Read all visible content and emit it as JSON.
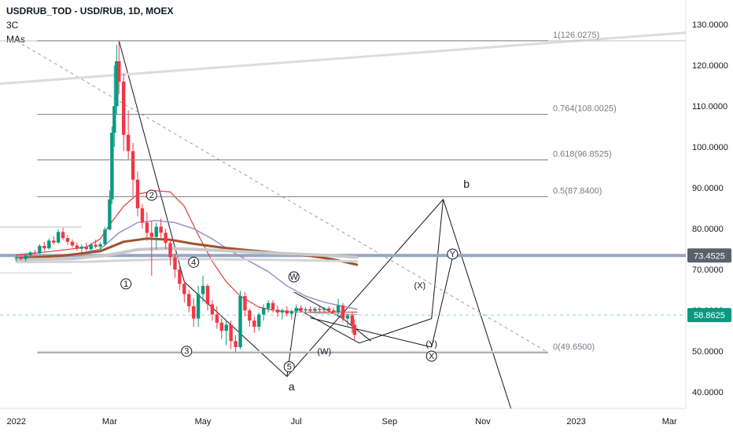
{
  "header": {
    "title": "USDRUB_TOD - USD/RUB, 1D, MOEX",
    "line2": "3C",
    "line3": "MAs"
  },
  "chart_data": {
    "type": "candlestick",
    "ylim": [
      36,
      136
    ],
    "y_ticks": [
      "40.0000",
      "50.0000",
      "60.0000",
      "70.0000",
      "80.0000",
      "90.0000",
      "100.0000",
      "110.0000",
      "120.0000",
      "130.0000"
    ],
    "y_tick_values": [
      40,
      50,
      60,
      70,
      80,
      90,
      100,
      110,
      120,
      130
    ],
    "x_ticks": [
      "2022",
      "Mar",
      "May",
      "Jul",
      "Sep",
      "Nov",
      "2023",
      "Mar"
    ],
    "x_tick_values": [
      0,
      2,
      4,
      6,
      8,
      10,
      12,
      14
    ],
    "xlim": [
      -0.35,
      14.35
    ],
    "price_tags": [
      {
        "label": "73.4525",
        "value": 73.45,
        "color": "#5d606b"
      },
      {
        "label": "58.8625",
        "value": 58.86,
        "color": "#089981"
      }
    ],
    "fib_levels": [
      {
        "label": "1(126.0275)",
        "value": 126.03
      },
      {
        "label": "0.764(108.0025)",
        "value": 108.0
      },
      {
        "label": "0.618(96.8525)",
        "value": 96.85
      },
      {
        "label": "0.5(87.8400)",
        "value": 87.84
      },
      {
        "label": "0(49.6500)",
        "value": 49.65
      }
    ],
    "fib_x_start": 0.45,
    "fib_x_end": 11.4,
    "wave_labels": [
      {
        "label": "1",
        "x": 2.35,
        "y": 66.5,
        "circled": true
      },
      {
        "label": "2",
        "x": 2.9,
        "y": 88.2,
        "circled": true
      },
      {
        "label": "3",
        "x": 3.65,
        "y": 50.0,
        "circled": true
      },
      {
        "label": "4",
        "x": 3.8,
        "y": 71.8,
        "circled": true
      },
      {
        "label": "5",
        "x": 5.85,
        "y": 46.2,
        "circled": true
      },
      {
        "label": "W",
        "x": 5.95,
        "y": 68.2,
        "circled": true
      },
      {
        "label": "(W)",
        "x": 6.6,
        "y": 50.0,
        "circled": false
      },
      {
        "label": "(X)",
        "x": 8.65,
        "y": 66.2,
        "circled": false
      },
      {
        "label": "Y",
        "x": 9.35,
        "y": 73.8,
        "circled": true
      },
      {
        "label": "(Y)",
        "x": 8.9,
        "y": 51.9,
        "circled": false
      },
      {
        "label": "X",
        "x": 8.9,
        "y": 48.8,
        "circled": true
      },
      {
        "label": "a",
        "x": 5.9,
        "y": 41.2,
        "circled": false,
        "big": true
      },
      {
        "label": "b",
        "x": 9.65,
        "y": 90.8,
        "circled": false,
        "big": true
      }
    ],
    "candles": [
      [
        0.0,
        72.8,
        73.4,
        72.0,
        73.0
      ],
      [
        0.1,
        73.0,
        73.6,
        72.2,
        72.6
      ],
      [
        0.2,
        72.6,
        73.9,
        72.0,
        73.5
      ],
      [
        0.3,
        73.5,
        74.5,
        73.0,
        74.2
      ],
      [
        0.4,
        74.2,
        74.8,
        73.6,
        74.0
      ],
      [
        0.5,
        74.0,
        76.2,
        73.8,
        75.8
      ],
      [
        0.6,
        75.8,
        76.8,
        74.6,
        75.2
      ],
      [
        0.7,
        75.2,
        77.6,
        74.9,
        77.1
      ],
      [
        0.8,
        77.1,
        78.2,
        76.1,
        76.6
      ],
      [
        0.9,
        76.6,
        79.9,
        76.3,
        79.2
      ],
      [
        1.0,
        79.2,
        80.2,
        77.2,
        77.7
      ],
      [
        1.1,
        77.7,
        78.4,
        76.0,
        76.8
      ],
      [
        1.2,
        76.8,
        77.4,
        75.4,
        75.9
      ],
      [
        1.3,
        75.9,
        76.6,
        74.6,
        75.1
      ],
      [
        1.4,
        75.1,
        76.2,
        74.2,
        75.6
      ],
      [
        1.5,
        75.6,
        76.6,
        74.6,
        75.0
      ],
      [
        1.6,
        75.0,
        76.5,
        74.6,
        76.1
      ],
      [
        1.7,
        76.1,
        77.3,
        75.2,
        75.6
      ],
      [
        1.8,
        75.6,
        76.7,
        74.9,
        76.2
      ],
      [
        1.9,
        76.2,
        80.4,
        75.8,
        79.8
      ],
      [
        2.0,
        79.8,
        89.4,
        79.6,
        87.2
      ],
      [
        2.05,
        87.2,
        105.0,
        86.0,
        103.5
      ],
      [
        2.1,
        103.5,
        120.0,
        100.0,
        110.0
      ],
      [
        2.15,
        110.0,
        125.0,
        108.0,
        121.0
      ],
      [
        2.2,
        121.0,
        126.0,
        113.0,
        116.0
      ],
      [
        2.3,
        116.0,
        118.0,
        99.0,
        103.0
      ],
      [
        2.4,
        103.0,
        109.0,
        97.0,
        99.0
      ],
      [
        2.5,
        99.0,
        101.0,
        88.0,
        92.0
      ],
      [
        2.6,
        92.0,
        94.0,
        83.0,
        85.0
      ],
      [
        2.7,
        85.0,
        86.0,
        80.0,
        81.5
      ],
      [
        2.8,
        81.5,
        84.0,
        77.0,
        79.0
      ],
      [
        2.9,
        79.0,
        82.0,
        68.5,
        78.0
      ],
      [
        3.0,
        78.0,
        81.5,
        75.0,
        80.5
      ],
      [
        3.1,
        80.5,
        82.5,
        77.5,
        79.0
      ],
      [
        3.2,
        79.0,
        80.0,
        75.0,
        76.5
      ],
      [
        3.3,
        76.5,
        77.5,
        71.0,
        73.0
      ],
      [
        3.4,
        73.0,
        74.0,
        68.0,
        70.0
      ],
      [
        3.5,
        70.0,
        71.5,
        65.0,
        66.5
      ],
      [
        3.6,
        66.5,
        67.5,
        62.0,
        64.0
      ],
      [
        3.7,
        64.0,
        65.0,
        59.5,
        61.0
      ],
      [
        3.8,
        61.0,
        63.0,
        56.0,
        58.0
      ],
      [
        3.9,
        58.0,
        66.0,
        56.0,
        64.0
      ],
      [
        4.0,
        64.0,
        68.5,
        62.0,
        66.0
      ],
      [
        4.1,
        66.0,
        66.5,
        60.0,
        61.5
      ],
      [
        4.2,
        61.5,
        62.5,
        57.5,
        59.0
      ],
      [
        4.3,
        59.0,
        61.0,
        55.5,
        57.0
      ],
      [
        4.4,
        57.0,
        58.0,
        53.0,
        55.0
      ],
      [
        4.5,
        55.0,
        57.5,
        51.5,
        56.5
      ],
      [
        4.6,
        56.5,
        57.5,
        50.5,
        52.5
      ],
      [
        4.7,
        52.5,
        54.0,
        49.8,
        51.0
      ],
      [
        4.8,
        51.0,
        64.8,
        50.5,
        63.5
      ],
      [
        4.9,
        63.5,
        64.5,
        58.5,
        60.0
      ],
      [
        5.0,
        60.0,
        60.5,
        56.0,
        57.5
      ],
      [
        5.1,
        57.5,
        58.5,
        54.5,
        56.0
      ],
      [
        5.2,
        56.0,
        59.5,
        55.0,
        59.0
      ],
      [
        5.3,
        59.0,
        61.5,
        57.5,
        60.5
      ],
      [
        5.4,
        60.5,
        62.5,
        59.5,
        61.8
      ],
      [
        5.5,
        61.8,
        62.5,
        59.5,
        60.2
      ],
      [
        5.6,
        60.2,
        61.2,
        58.5,
        59.5
      ],
      [
        5.7,
        59.5,
        60.5,
        57.8,
        60.0
      ],
      [
        5.8,
        60.0,
        61.0,
        58.5,
        59.2
      ],
      [
        5.9,
        59.2,
        60.2,
        57.8,
        59.8
      ],
      [
        6.0,
        59.8,
        61.5,
        59.2,
        60.6
      ],
      [
        6.1,
        60.6,
        61.2,
        59.5,
        60.0
      ],
      [
        6.2,
        60.0,
        60.8,
        59.3,
        60.3
      ],
      [
        6.3,
        60.3,
        61.0,
        59.4,
        59.9
      ],
      [
        6.4,
        59.9,
        60.8,
        59.4,
        60.4
      ],
      [
        6.5,
        60.4,
        61.0,
        59.6,
        60.1
      ],
      [
        6.6,
        60.1,
        60.8,
        59.5,
        60.5
      ],
      [
        6.7,
        60.5,
        61.0,
        59.8,
        60.0
      ],
      [
        6.8,
        60.0,
        60.6,
        59.2,
        59.6
      ],
      [
        6.9,
        59.6,
        62.8,
        58.8,
        61.2
      ],
      [
        7.0,
        61.2,
        61.8,
        57.2,
        58.0
      ],
      [
        7.1,
        58.0,
        59.2,
        56.0,
        58.8
      ],
      [
        7.2,
        58.8,
        59.4,
        54.5,
        56.5
      ],
      [
        7.25,
        56.5,
        57.8,
        52.5,
        54.0
      ]
    ],
    "moving_averages": [
      {
        "color": "#e53935",
        "width": 1.2,
        "points": [
          [
            0.0,
            73.6
          ],
          [
            0.8,
            74.5
          ],
          [
            1.5,
            75.5
          ],
          [
            1.8,
            77.5
          ],
          [
            2.0,
            81.0
          ],
          [
            2.3,
            85.5
          ],
          [
            2.6,
            88.5
          ],
          [
            3.0,
            89.3
          ],
          [
            3.3,
            89.0
          ],
          [
            3.6,
            85.5
          ],
          [
            3.9,
            78.5
          ],
          [
            4.2,
            72.0
          ],
          [
            4.5,
            67.0
          ],
          [
            4.8,
            63.5
          ],
          [
            5.2,
            60.8
          ],
          [
            5.6,
            59.8
          ],
          [
            6.0,
            59.6
          ],
          [
            6.6,
            59.6
          ],
          [
            7.3,
            59.6
          ]
        ]
      },
      {
        "color": "#9c8fc5",
        "width": 1.5,
        "points": [
          [
            0.0,
            73.0
          ],
          [
            1.2,
            73.6
          ],
          [
            1.8,
            75.0
          ],
          [
            2.2,
            79.0
          ],
          [
            2.6,
            81.5
          ],
          [
            3.0,
            82.0
          ],
          [
            3.4,
            81.5
          ],
          [
            3.8,
            80.0
          ],
          [
            4.2,
            77.5
          ],
          [
            4.6,
            74.5
          ],
          [
            5.0,
            72.0
          ],
          [
            5.4,
            69.5
          ],
          [
            5.8,
            66.0
          ],
          [
            6.2,
            63.5
          ],
          [
            6.6,
            62.0
          ],
          [
            7.0,
            61.0
          ],
          [
            7.3,
            60.3
          ]
        ]
      },
      {
        "color": "#a0522d",
        "width": 3,
        "points": [
          [
            0.0,
            72.7
          ],
          [
            1.0,
            73.4
          ],
          [
            1.8,
            74.5
          ],
          [
            2.3,
            76.8
          ],
          [
            2.8,
            77.6
          ],
          [
            3.3,
            77.3
          ],
          [
            3.8,
            76.3
          ],
          [
            4.4,
            75.4
          ],
          [
            5.0,
            74.7
          ],
          [
            5.6,
            74.1
          ],
          [
            6.2,
            73.5
          ],
          [
            6.8,
            72.5
          ],
          [
            7.3,
            71.2
          ]
        ]
      },
      {
        "color": "#c9c9c9",
        "width": 4,
        "points": [
          [
            0.0,
            72.4
          ],
          [
            1.2,
            72.7
          ],
          [
            2.0,
            73.6
          ],
          [
            2.6,
            74.9
          ],
          [
            3.2,
            75.2
          ],
          [
            3.8,
            75.0
          ],
          [
            4.5,
            74.6
          ],
          [
            5.2,
            74.2
          ],
          [
            6.0,
            73.8
          ],
          [
            6.8,
            73.4
          ],
          [
            7.3,
            73.0
          ]
        ]
      },
      {
        "color": "#d4d4d4",
        "width": 3,
        "points": [
          [
            0.0,
            71.8
          ],
          [
            1.5,
            71.9
          ],
          [
            2.5,
            72.3
          ],
          [
            3.5,
            72.6
          ],
          [
            4.5,
            72.5
          ],
          [
            5.5,
            72.4
          ],
          [
            6.5,
            72.2
          ],
          [
            7.3,
            72.0
          ]
        ]
      },
      {
        "color": "#b5b5b5",
        "width": 1.5,
        "points": [
          [
            5.5,
            60.0
          ],
          [
            6.5,
            59.3
          ],
          [
            7.3,
            59.0
          ]
        ]
      }
    ],
    "trendlines": [
      {
        "color": "#131722",
        "width": 1,
        "dash": false,
        "points": [
          [
            2.2,
            126.0
          ],
          [
            3.6,
            67.0
          ],
          [
            5.8,
            43.8
          ],
          [
            6.0,
            60.5
          ],
          [
            7.35,
            52.0
          ],
          [
            8.9,
            58.0
          ],
          [
            9.15,
            87.2
          ],
          [
            10.6,
            36.0
          ]
        ]
      },
      {
        "color": "#131722",
        "width": 1,
        "dash": false,
        "points": [
          [
            5.8,
            43.8
          ],
          [
            9.15,
            87.2
          ]
        ]
      },
      {
        "color": "#131722",
        "width": 1,
        "dash": false,
        "points": [
          [
            5.95,
            64.5
          ],
          [
            7.0,
            58.0
          ]
        ]
      },
      {
        "color": "#131722",
        "width": 1,
        "dash": false,
        "points": [
          [
            6.3,
            58.2
          ],
          [
            8.9,
            51.0
          ]
        ]
      },
      {
        "color": "#131722",
        "width": 1,
        "dash": false,
        "points": [
          [
            8.9,
            51.0
          ],
          [
            9.35,
            73.0
          ]
        ]
      },
      {
        "color": "#131722",
        "width": 1,
        "dash": false,
        "points": [
          [
            7.0,
            58.0
          ],
          [
            7.6,
            52.5
          ]
        ]
      },
      {
        "color": "#9e9e9e",
        "width": 1,
        "dash": true,
        "points": [
          [
            0.0,
            126.0
          ],
          [
            11.4,
            49.7
          ]
        ]
      },
      {
        "color": "#dcdcdc",
        "width": 3,
        "dash": false,
        "points": [
          [
            -0.35,
            115.5
          ],
          [
            14.35,
            128.0
          ]
        ]
      },
      {
        "color": "#c0c0c0",
        "width": 1,
        "dash": false,
        "points": [
          [
            -0.35,
            126.0
          ],
          [
            14.35,
            126.0
          ]
        ]
      },
      {
        "color": "#9aa5c5",
        "width": 4,
        "dash": false,
        "points": [
          [
            -0.35,
            73.45
          ],
          [
            14.35,
            73.45
          ]
        ]
      },
      {
        "color": "#dddddd",
        "width": 2,
        "dash": false,
        "points": [
          [
            -0.35,
            80.4
          ],
          [
            1.4,
            80.4
          ]
        ]
      },
      {
        "color": "#e2e2e2",
        "width": 2,
        "dash": false,
        "points": [
          [
            -0.35,
            69.2
          ],
          [
            1.2,
            69.2
          ]
        ]
      },
      {
        "color": "#e0e0e0",
        "width": 3,
        "dash": false,
        "points": [
          [
            0.45,
            49.8
          ],
          [
            11.4,
            49.8
          ]
        ]
      },
      {
        "color": "#9ad1c1",
        "width": 1,
        "dash": true,
        "points": [
          [
            -0.35,
            58.86
          ],
          [
            14.35,
            58.86
          ]
        ]
      }
    ]
  }
}
